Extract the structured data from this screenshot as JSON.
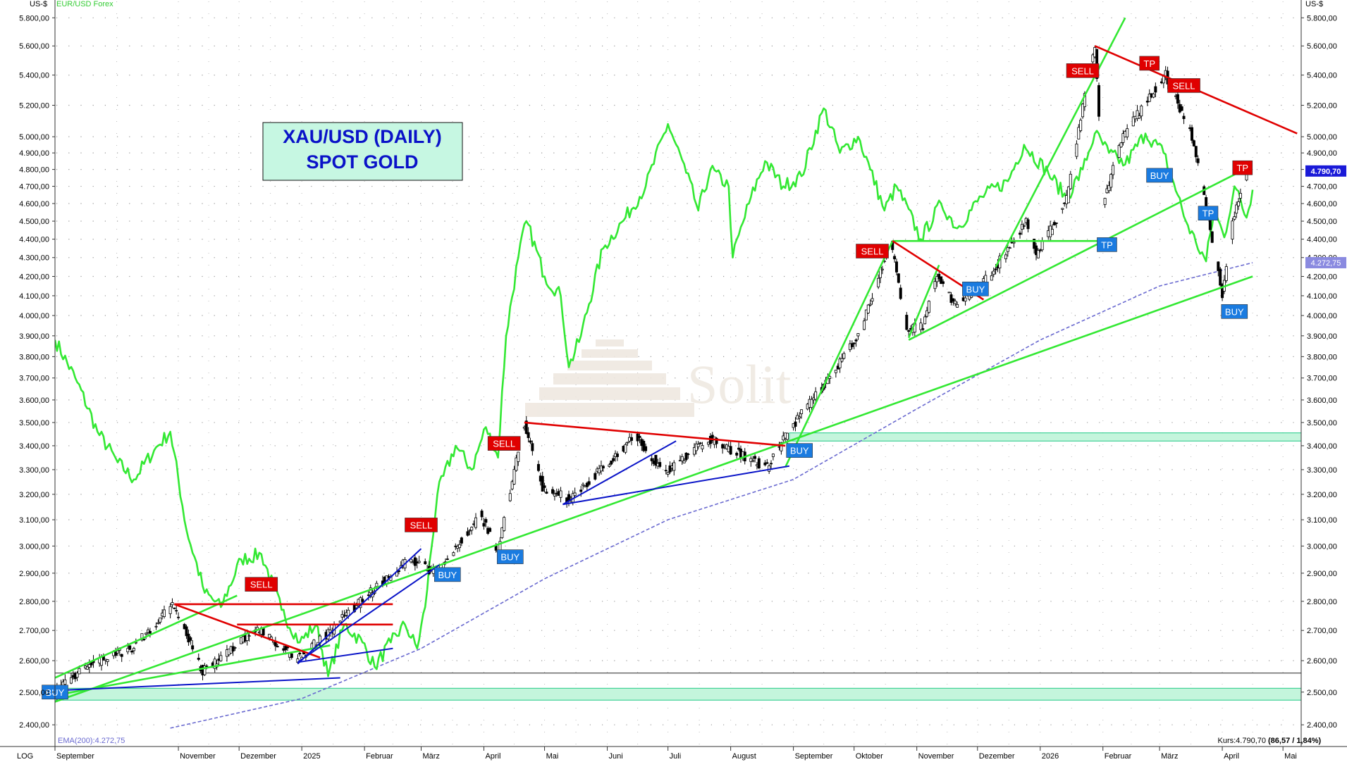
{
  "header": {
    "left_unit": "US-$",
    "right_unit": "US-$",
    "overlay_label": "EUR/USD Forex",
    "scale_mode": "LOG"
  },
  "title_box": {
    "line1": "XAU/USD (DAILY)",
    "line2": "SPOT GOLD"
  },
  "watermark": "Solit",
  "footer": {
    "ema_label": "EMA(200):4.272,75",
    "price_label": "Kurs:4.790,70",
    "price_change": "(86,57 / 1,84%)"
  },
  "colors": {
    "candles": "#000000",
    "overlay_line": "#33e833",
    "trendline_green": "#33e833",
    "trendline_red": "#e00000",
    "trendline_blue": "#0a14c8",
    "ema": "#6a6ad0",
    "zone_fill": "#c4f5dc",
    "zone_stroke": "#22c986",
    "sell": "#e00000",
    "buy": "#1a7be0",
    "tp_up": "#e00000",
    "tp_down": "#1a7be0",
    "title_bg": "#c6f7e2",
    "title_text": "#0a12c8"
  },
  "chart_data": {
    "type": "candlestick",
    "instrument": "XAU/USD (DAILY) SPOT GOLD",
    "y_scale": "log",
    "ylim": [
      2340,
      5920
    ],
    "x_range": [
      "2024-09-01",
      "2026-05-10"
    ],
    "y_ticks": [
      "2.400,00",
      "2.500,00",
      "2.600,00",
      "2.700,00",
      "2.800,00",
      "2.900,00",
      "3.000,00",
      "3.100,00",
      "3.200,00",
      "3.300,00",
      "3.400,00",
      "3.500,00",
      "3.600,00",
      "3.700,00",
      "3.800,00",
      "3.900,00",
      "4.000,00",
      "4.100,00",
      "4.200,00",
      "4.300,00",
      "4.400,00",
      "4.500,00",
      "4.600,00",
      "4.700,00",
      "4.800,00",
      "4.900,00",
      "5.000,00",
      "5.200,00",
      "5.400,00",
      "5.600,00",
      "5.800,00"
    ],
    "x_ticks": [
      {
        "label": "September",
        "date": "2024-09-01"
      },
      {
        "label": "November",
        "date": "2024-11-01"
      },
      {
        "label": "Dezember",
        "date": "2024-12-01"
      },
      {
        "label": "2025",
        "date": "2025-01-01"
      },
      {
        "label": "Februar",
        "date": "2025-02-01"
      },
      {
        "label": "März",
        "date": "2025-03-01"
      },
      {
        "label": "April",
        "date": "2025-04-01"
      },
      {
        "label": "Mai",
        "date": "2025-05-01"
      },
      {
        "label": "Juni",
        "date": "2025-06-01"
      },
      {
        "label": "Juli",
        "date": "2025-07-01"
      },
      {
        "label": "August",
        "date": "2025-08-01"
      },
      {
        "label": "September",
        "date": "2025-09-01"
      },
      {
        "label": "Oktober",
        "date": "2025-10-01"
      },
      {
        "label": "November",
        "date": "2025-11-01"
      },
      {
        "label": "Dezember",
        "date": "2025-12-01"
      },
      {
        "label": "2026",
        "date": "2026-01-01"
      },
      {
        "label": "Februar",
        "date": "2026-02-01"
      },
      {
        "label": "März",
        "date": "2026-03-01"
      },
      {
        "label": "April",
        "date": "2026-04-01"
      },
      {
        "label": "Mai",
        "date": "2026-05-01"
      }
    ],
    "price_path": [
      [
        "2024-09-01",
        2495
      ],
      [
        "2024-09-20",
        2590
      ],
      [
        "2024-10-10",
        2640
      ],
      [
        "2024-10-30",
        2785
      ],
      [
        "2024-11-14",
        2565
      ],
      [
        "2024-11-25",
        2620
      ],
      [
        "2024-12-10",
        2710
      ],
      [
        "2024-12-30",
        2605
      ],
      [
        "2025-01-15",
        2690
      ],
      [
        "2025-01-31",
        2800
      ],
      [
        "2025-02-24",
        2950
      ],
      [
        "2025-03-10",
        2900
      ],
      [
        "2025-03-31",
        3120
      ],
      [
        "2025-04-09",
        2980
      ],
      [
        "2025-04-22",
        3495
      ],
      [
        "2025-05-01",
        3230
      ],
      [
        "2025-05-15",
        3180
      ],
      [
        "2025-06-16",
        3440
      ],
      [
        "2025-06-30",
        3290
      ],
      [
        "2025-07-22",
        3430
      ],
      [
        "2025-08-20",
        3310
      ],
      [
        "2025-09-01",
        3480
      ],
      [
        "2025-09-20",
        3700
      ],
      [
        "2025-10-05",
        3920
      ],
      [
        "2025-10-20",
        4380
      ],
      [
        "2025-10-28",
        3930
      ],
      [
        "2025-11-05",
        3950
      ],
      [
        "2025-11-12",
        4200
      ],
      [
        "2025-11-21",
        4050
      ],
      [
        "2025-12-08",
        4200
      ],
      [
        "2025-12-26",
        4500
      ],
      [
        "2025-12-31",
        4300
      ],
      [
        "2026-01-15",
        4620
      ],
      [
        "2026-01-29",
        5600
      ],
      [
        "2026-02-02",
        4600
      ],
      [
        "2026-02-12",
        5000
      ],
      [
        "2026-02-27",
        5300
      ],
      [
        "2026-03-05",
        5400
      ],
      [
        "2026-03-18",
        5000
      ],
      [
        "2026-03-28",
        4400
      ],
      [
        "2026-04-02",
        4100
      ],
      [
        "2026-04-07",
        4500
      ],
      [
        "2026-04-14",
        4790
      ]
    ],
    "last_price": 4790.7,
    "change": 86.57,
    "change_pct": 1.84,
    "ema200": {
      "label": "EMA(200)",
      "last": 4272.75,
      "path": [
        [
          "2024-10-28",
          2390
        ],
        [
          "2025-01-01",
          2480
        ],
        [
          "2025-03-01",
          2640
        ],
        [
          "2025-05-01",
          2880
        ],
        [
          "2025-07-01",
          3100
        ],
        [
          "2025-09-01",
          3260
        ],
        [
          "2025-11-01",
          3560
        ],
        [
          "2026-01-01",
          3880
        ],
        [
          "2026-03-01",
          4150
        ],
        [
          "2026-04-16",
          4272.75
        ]
      ]
    },
    "overlay_series": {
      "name": "EUR/USD Forex",
      "path": [
        [
          "2024-09-01",
          3880
        ],
        [
          "2024-09-12",
          3680
        ],
        [
          "2024-09-22",
          3460
        ],
        [
          "2024-10-02",
          3330
        ],
        [
          "2024-10-10",
          3260
        ],
        [
          "2024-10-20",
          3380
        ],
        [
          "2024-10-28",
          3460
        ],
        [
          "2024-11-05",
          3060
        ],
        [
          "2024-11-14",
          2830
        ],
        [
          "2024-11-22",
          2780
        ],
        [
          "2024-12-02",
          2950
        ],
        [
          "2024-12-12",
          2970
        ],
        [
          "2024-12-22",
          2770
        ],
        [
          "2024-12-31",
          2660
        ],
        [
          "2025-01-08",
          2720
        ],
        [
          "2025-01-14",
          2550
        ],
        [
          "2025-01-22",
          2720
        ],
        [
          "2025-01-31",
          2660
        ],
        [
          "2025-02-06",
          2580
        ],
        [
          "2025-02-14",
          2660
        ],
        [
          "2025-02-21",
          2720
        ],
        [
          "2025-02-27",
          2640
        ],
        [
          "2025-03-03",
          2780
        ],
        [
          "2025-03-09",
          3200
        ],
        [
          "2025-03-18",
          3400
        ],
        [
          "2025-03-26",
          3300
        ],
        [
          "2025-04-02",
          3480
        ],
        [
          "2025-04-08",
          3350
        ],
        [
          "2025-04-12",
          3900
        ],
        [
          "2025-04-18",
          4300
        ],
        [
          "2025-04-22",
          4500
        ],
        [
          "2025-05-01",
          4200
        ],
        [
          "2025-05-09",
          4100
        ],
        [
          "2025-05-13",
          3750
        ],
        [
          "2025-05-19",
          3900
        ],
        [
          "2025-05-30",
          4350
        ],
        [
          "2025-06-10",
          4520
        ],
        [
          "2025-06-20",
          4700
        ],
        [
          "2025-07-01",
          5080
        ],
        [
          "2025-07-10",
          4780
        ],
        [
          "2025-07-16",
          4560
        ],
        [
          "2025-07-22",
          4800
        ],
        [
          "2025-07-31",
          4700
        ],
        [
          "2025-08-02",
          4300
        ],
        [
          "2025-08-10",
          4600
        ],
        [
          "2025-08-18",
          4850
        ],
        [
          "2025-08-27",
          4700
        ],
        [
          "2025-09-05",
          4760
        ],
        [
          "2025-09-16",
          5180
        ],
        [
          "2025-09-24",
          4900
        ],
        [
          "2025-10-03",
          5000
        ],
        [
          "2025-10-09",
          4800
        ],
        [
          "2025-10-16",
          4560
        ],
        [
          "2025-10-22",
          4700
        ],
        [
          "2025-11-03",
          4400
        ],
        [
          "2025-11-13",
          4600
        ],
        [
          "2025-11-21",
          4460
        ],
        [
          "2025-12-03",
          4640
        ],
        [
          "2025-12-16",
          4730
        ],
        [
          "2025-12-24",
          4950
        ],
        [
          "2026-01-05",
          4780
        ],
        [
          "2026-01-14",
          4630
        ],
        [
          "2026-01-22",
          4800
        ],
        [
          "2026-01-28",
          5020
        ],
        [
          "2026-02-04",
          4900
        ],
        [
          "2026-02-12",
          4830
        ],
        [
          "2026-02-22",
          5020
        ],
        [
          "2026-03-03",
          4900
        ],
        [
          "2026-03-08",
          4720
        ],
        [
          "2026-03-14",
          4500
        ],
        [
          "2026-03-19",
          4380
        ],
        [
          "2026-03-24",
          4280
        ],
        [
          "2026-03-28",
          4560
        ],
        [
          "2026-04-02",
          4410
        ],
        [
          "2026-04-07",
          4700
        ],
        [
          "2026-04-13",
          4520
        ],
        [
          "2026-04-16",
          4680
        ]
      ]
    },
    "trendlines": [
      {
        "color": "green",
        "from": [
          "2024-09-01",
          2470
        ],
        "to": [
          "2026-04-16",
          4200
        ]
      },
      {
        "color": "green",
        "from": [
          "2024-09-01",
          2545
        ],
        "to": [
          "2024-11-30",
          2820
        ]
      },
      {
        "color": "green",
        "from": [
          "2024-09-01",
          2490
        ],
        "to": [
          "2025-01-15",
          2650
        ]
      },
      {
        "color": "green",
        "from": [
          "2025-08-28",
          3310
        ],
        "to": [
          "2025-10-20",
          4390
        ]
      },
      {
        "color": "green",
        "from": [
          "2025-10-20",
          4390
        ],
        "to": [
          "2026-02-04",
          4390
        ]
      },
      {
        "color": "green",
        "from": [
          "2025-10-28",
          3890
        ],
        "to": [
          "2025-11-12",
          4260
        ]
      },
      {
        "color": "green",
        "from": [
          "2025-10-28",
          3880
        ],
        "to": [
          "2026-04-12",
          4800
        ]
      },
      {
        "color": "green",
        "from": [
          "2025-12-10",
          4250
        ],
        "to": [
          "2026-02-12",
          5800
        ]
      },
      {
        "color": "red",
        "from": [
          "2024-10-30",
          2790
        ],
        "to": [
          "2025-01-10",
          2610
        ]
      },
      {
        "color": "red",
        "from": [
          "2024-10-30",
          2790
        ],
        "to": [
          "2025-02-15",
          2790
        ]
      },
      {
        "color": "red",
        "from": [
          "2024-11-30",
          2720
        ],
        "to": [
          "2025-02-15",
          2720
        ]
      },
      {
        "color": "red",
        "from": [
          "2025-04-21",
          3500
        ],
        "to": [
          "2025-08-28",
          3400
        ]
      },
      {
        "color": "red",
        "from": [
          "2025-10-20",
          4390
        ],
        "to": [
          "2025-12-04",
          4080
        ]
      },
      {
        "color": "red",
        "from": [
          "2026-01-28",
          5600
        ],
        "to": [
          "2026-05-08",
          5020
        ]
      },
      {
        "color": "blue",
        "from": [
          "2024-09-01",
          2505
        ],
        "to": [
          "2025-01-20",
          2545
        ]
      },
      {
        "color": "blue",
        "from": [
          "2024-12-30",
          2590
        ],
        "to": [
          "2025-03-01",
          2990
        ]
      },
      {
        "color": "blue",
        "from": [
          "2024-12-30",
          2595
        ],
        "to": [
          "2025-03-10",
          2930
        ]
      },
      {
        "color": "blue",
        "from": [
          "2024-12-30",
          2595
        ],
        "to": [
          "2025-02-15",
          2640
        ]
      },
      {
        "color": "blue",
        "from": [
          "2025-05-10",
          3160
        ],
        "to": [
          "2025-07-05",
          3420
        ]
      },
      {
        "color": "blue",
        "from": [
          "2025-05-10",
          3160
        ],
        "to": [
          "2025-08-30",
          3315
        ]
      }
    ],
    "zones": [
      {
        "from": 3420,
        "to": 3455,
        "start": "2025-08-30"
      },
      {
        "from": 2475,
        "to": 2512,
        "start": "2024-09-01"
      }
    ],
    "horizontal_lines": [
      {
        "value": 2560
      }
    ],
    "signals": [
      {
        "text": "SELL",
        "type": "sell",
        "date": "2024-12-12",
        "price": 2860
      },
      {
        "text": "SELL",
        "type": "sell",
        "date": "2025-03-01",
        "price": 3080
      },
      {
        "text": "SELL",
        "type": "sell",
        "date": "2025-04-11",
        "price": 3410
      },
      {
        "text": "SELL",
        "type": "sell",
        "date": "2025-10-10",
        "price": 4335
      },
      {
        "text": "SELL",
        "type": "sell",
        "date": "2026-01-22",
        "price": 5430
      },
      {
        "text": "SELL",
        "type": "sell",
        "date": "2026-03-13",
        "price": 5330
      },
      {
        "text": "BUY",
        "type": "buy",
        "date": "2024-09-01",
        "price": 2500
      },
      {
        "text": "BUY",
        "type": "buy",
        "date": "2025-03-14",
        "price": 2895
      },
      {
        "text": "BUY",
        "type": "buy",
        "date": "2025-04-14",
        "price": 2960
      },
      {
        "text": "BUY",
        "type": "buy",
        "date": "2025-09-04",
        "price": 3380
      },
      {
        "text": "BUY",
        "type": "buy",
        "date": "2025-11-30",
        "price": 4135
      },
      {
        "text": "BUY",
        "type": "buy",
        "date": "2026-03-01",
        "price": 4765
      },
      {
        "text": "BUY",
        "type": "buy",
        "date": "2026-04-07",
        "price": 4020
      },
      {
        "text": "TP",
        "type": "tp_up",
        "date": "2026-02-24",
        "price": 5480
      },
      {
        "text": "TP",
        "type": "tp_up",
        "date": "2026-04-11",
        "price": 4810
      },
      {
        "text": "TP",
        "type": "tp_down",
        "date": "2026-03-25",
        "price": 4545
      },
      {
        "text": "TP",
        "type": "tp_down",
        "date": "2026-02-03",
        "price": 4370
      }
    ]
  }
}
